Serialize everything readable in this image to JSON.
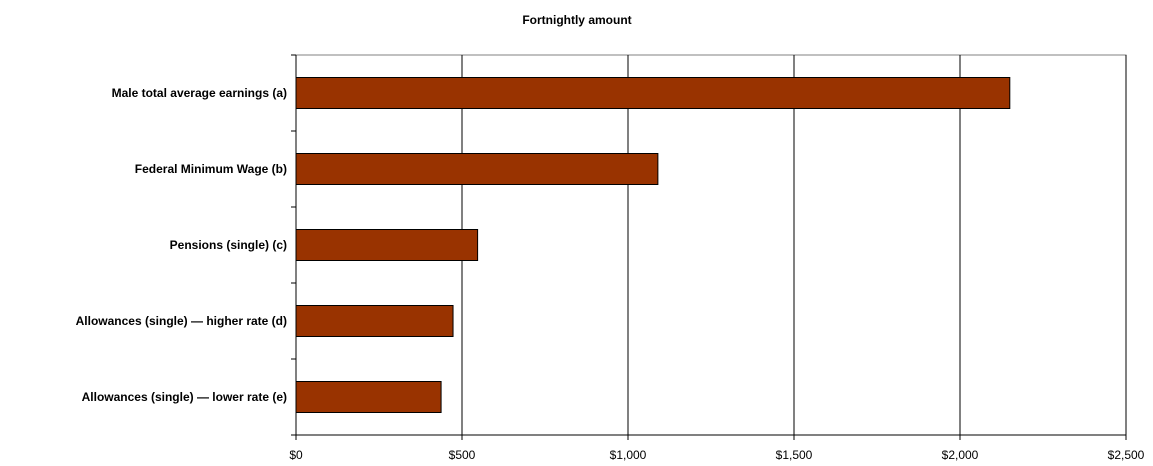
{
  "chart_data": {
    "type": "bar",
    "orientation": "horizontal",
    "title": "Fortnightly amount",
    "categories": [
      "Male total average earnings (a)",
      "Federal Minimum Wage (b)",
      "Pensions (single) (c)",
      "Allowances (single) — higher rate (d)",
      "Allowances (single) — lower rate (e)"
    ],
    "values": [
      2150,
      1090,
      547,
      473,
      437
    ],
    "xlim": [
      0,
      2500
    ],
    "xticks": [
      0,
      500,
      1000,
      1500,
      2000,
      2500
    ],
    "xtick_labels": [
      "$0",
      "$500",
      "$1,000",
      "$1,500",
      "$2,000",
      "$2,500"
    ],
    "grid": "vertical",
    "bar_color": "#993300",
    "xlabel": "",
    "ylabel": ""
  }
}
